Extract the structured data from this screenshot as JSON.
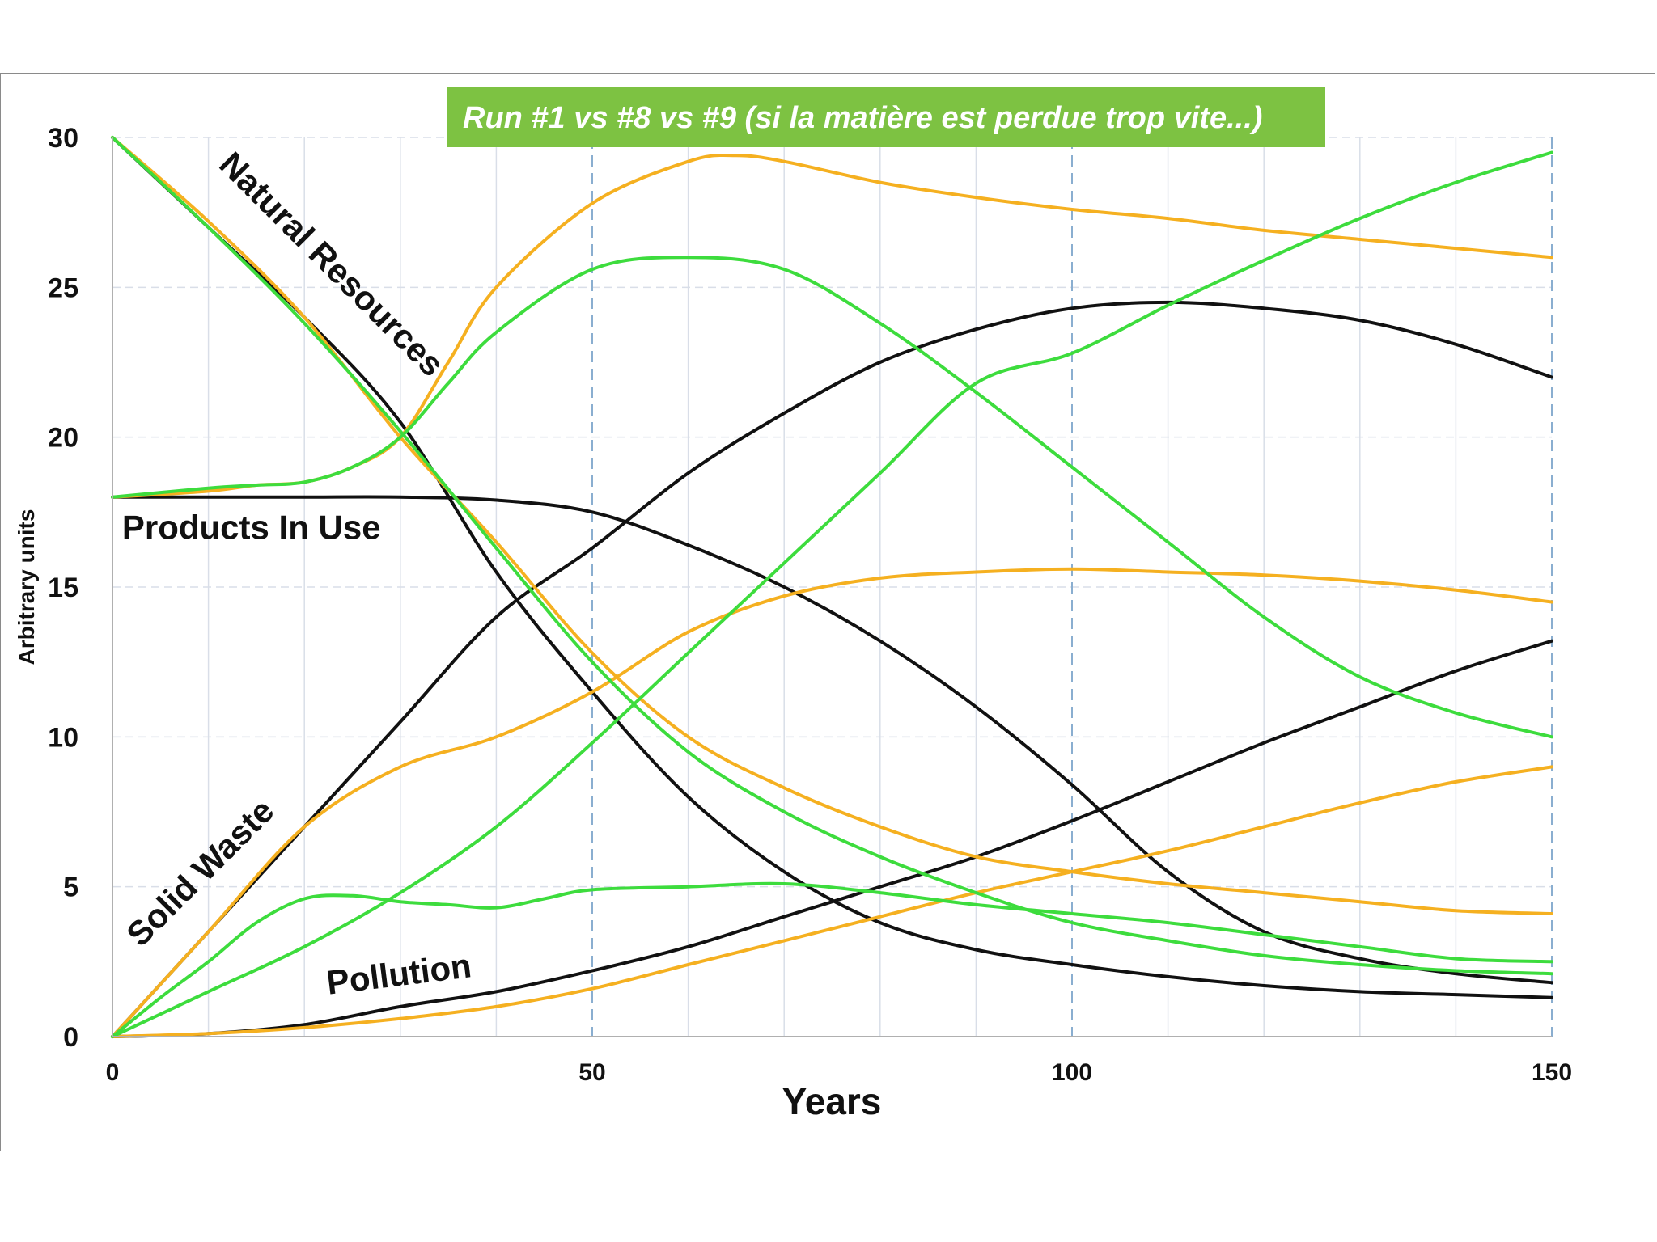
{
  "chart_data": {
    "type": "line",
    "title": "Run #1 vs #8 vs #9 (si la matière est perdue trop vite...)",
    "xlabel": "Years",
    "ylabel": "Arbitrary units",
    "xlim": [
      0,
      150
    ],
    "ylim": [
      0,
      30
    ],
    "xticks": [
      0,
      50,
      100,
      150
    ],
    "yticks": [
      0,
      5,
      10,
      15,
      20,
      25,
      30
    ],
    "grid": true,
    "colors": {
      "run1": "#111111",
      "run8": "#f5b020",
      "run9": "#3ddc3d",
      "title_bg": "#7dc242",
      "grid": "#d9dee8",
      "dashed": "#8aaed0"
    },
    "annotations": [
      {
        "text": "Natural Resources",
        "x": 22,
        "y": 25.5
      },
      {
        "text": "Products In Use",
        "x": 1,
        "y": 16.6
      },
      {
        "text": "Solid Waste",
        "x": 10,
        "y": 5.2
      },
      {
        "text": "Pollution",
        "x": 30,
        "y": 1.7
      }
    ],
    "series": [
      {
        "name": "Natural Resources - Run #1",
        "run": "run1",
        "points": [
          [
            0,
            30
          ],
          [
            10,
            27
          ],
          [
            20,
            24
          ],
          [
            30,
            20.5
          ],
          [
            40,
            15.5
          ],
          [
            50,
            11.5
          ],
          [
            60,
            8
          ],
          [
            70,
            5.5
          ],
          [
            80,
            3.8
          ],
          [
            90,
            2.9
          ],
          [
            100,
            2.4
          ],
          [
            110,
            2.0
          ],
          [
            120,
            1.7
          ],
          [
            130,
            1.5
          ],
          [
            140,
            1.4
          ],
          [
            150,
            1.3
          ]
        ]
      },
      {
        "name": "Natural Resources - Run #8",
        "run": "run8",
        "points": [
          [
            0,
            30
          ],
          [
            10,
            27.2
          ],
          [
            20,
            24
          ],
          [
            30,
            20
          ],
          [
            40,
            16.5
          ],
          [
            50,
            12.8
          ],
          [
            60,
            10
          ],
          [
            70,
            8.3
          ],
          [
            80,
            7
          ],
          [
            90,
            6
          ],
          [
            100,
            5.5
          ],
          [
            110,
            5.1
          ],
          [
            120,
            4.8
          ],
          [
            130,
            4.5
          ],
          [
            140,
            4.2
          ],
          [
            150,
            4.1
          ]
        ]
      },
      {
        "name": "Natural Resources - Run #9",
        "run": "run9",
        "points": [
          [
            0,
            30
          ],
          [
            10,
            27
          ],
          [
            20,
            23.8
          ],
          [
            30,
            20.2
          ],
          [
            40,
            16.3
          ],
          [
            50,
            12.5
          ],
          [
            60,
            9.5
          ],
          [
            70,
            7.5
          ],
          [
            80,
            6
          ],
          [
            90,
            4.8
          ],
          [
            100,
            3.8
          ],
          [
            110,
            3.2
          ],
          [
            120,
            2.7
          ],
          [
            130,
            2.4
          ],
          [
            140,
            2.2
          ],
          [
            150,
            2.1
          ]
        ]
      },
      {
        "name": "Products In Use - Run #1",
        "run": "run1",
        "points": [
          [
            0,
            18
          ],
          [
            10,
            18
          ],
          [
            20,
            18
          ],
          [
            30,
            18
          ],
          [
            40,
            17.9
          ],
          [
            50,
            17.5
          ],
          [
            60,
            16.4
          ],
          [
            70,
            15
          ],
          [
            80,
            13.2
          ],
          [
            90,
            11
          ],
          [
            100,
            8.4
          ],
          [
            110,
            5.5
          ],
          [
            120,
            3.5
          ],
          [
            130,
            2.6
          ],
          [
            140,
            2.1
          ],
          [
            150,
            1.8
          ]
        ]
      },
      {
        "name": "Products In Use - Run #8",
        "run": "run8",
        "points": [
          [
            0,
            18
          ],
          [
            10,
            18.2
          ],
          [
            15,
            18.4
          ],
          [
            20,
            18.5
          ],
          [
            25,
            19
          ],
          [
            30,
            20
          ],
          [
            35,
            22.5
          ],
          [
            40,
            25
          ],
          [
            50,
            27.8
          ],
          [
            60,
            29.2
          ],
          [
            65,
            29.4
          ],
          [
            70,
            29.2
          ],
          [
            80,
            28.5
          ],
          [
            90,
            28
          ],
          [
            100,
            27.6
          ],
          [
            110,
            27.3
          ],
          [
            120,
            26.9
          ],
          [
            130,
            26.6
          ],
          [
            140,
            26.3
          ],
          [
            150,
            26
          ]
        ]
      },
      {
        "name": "Products In Use - Run #9",
        "run": "run9",
        "points": [
          [
            0,
            18
          ],
          [
            10,
            18.3
          ],
          [
            15,
            18.4
          ],
          [
            20,
            18.5
          ],
          [
            25,
            19
          ],
          [
            30,
            20
          ],
          [
            35,
            21.8
          ],
          [
            40,
            23.5
          ],
          [
            50,
            25.6
          ],
          [
            60,
            26
          ],
          [
            70,
            25.6
          ],
          [
            80,
            23.8
          ],
          [
            90,
            21.5
          ],
          [
            100,
            19
          ],
          [
            110,
            16.5
          ],
          [
            120,
            14
          ],
          [
            130,
            12
          ],
          [
            140,
            10.8
          ],
          [
            150,
            10
          ]
        ]
      },
      {
        "name": "Solid Waste - Run #1",
        "run": "run1",
        "points": [
          [
            0,
            0
          ],
          [
            10,
            3.5
          ],
          [
            20,
            7
          ],
          [
            30,
            10.5
          ],
          [
            40,
            14
          ],
          [
            50,
            16.3
          ],
          [
            60,
            18.8
          ],
          [
            70,
            20.8
          ],
          [
            80,
            22.5
          ],
          [
            90,
            23.6
          ],
          [
            100,
            24.3
          ],
          [
            110,
            24.5
          ],
          [
            120,
            24.3
          ],
          [
            130,
            23.9
          ],
          [
            140,
            23.1
          ],
          [
            150,
            22
          ]
        ]
      },
      {
        "name": "Solid Waste - Run #8",
        "run": "run8",
        "points": [
          [
            0,
            0
          ],
          [
            10,
            3.5
          ],
          [
            20,
            7
          ],
          [
            30,
            9
          ],
          [
            40,
            10
          ],
          [
            50,
            11.5
          ],
          [
            60,
            13.5
          ],
          [
            70,
            14.7
          ],
          [
            80,
            15.3
          ],
          [
            90,
            15.5
          ],
          [
            100,
            15.6
          ],
          [
            110,
            15.5
          ],
          [
            120,
            15.4
          ],
          [
            130,
            15.2
          ],
          [
            140,
            14.9
          ],
          [
            150,
            14.5
          ]
        ]
      },
      {
        "name": "Solid Waste - Run #9",
        "run": "run9",
        "points": [
          [
            0,
            0
          ],
          [
            10,
            1.5
          ],
          [
            20,
            3
          ],
          [
            30,
            4.8
          ],
          [
            40,
            7
          ],
          [
            50,
            9.8
          ],
          [
            60,
            12.8
          ],
          [
            70,
            15.8
          ],
          [
            80,
            18.8
          ],
          [
            90,
            21.8
          ],
          [
            100,
            22.8
          ],
          [
            110,
            24.4
          ],
          [
            120,
            25.9
          ],
          [
            130,
            27.3
          ],
          [
            140,
            28.5
          ],
          [
            150,
            29.5
          ]
        ]
      },
      {
        "name": "Pollution - Run #1",
        "run": "run1",
        "points": [
          [
            0,
            0
          ],
          [
            10,
            0.1
          ],
          [
            20,
            0.4
          ],
          [
            30,
            1
          ],
          [
            40,
            1.5
          ],
          [
            50,
            2.2
          ],
          [
            60,
            3
          ],
          [
            70,
            4
          ],
          [
            80,
            5
          ],
          [
            90,
            6
          ],
          [
            100,
            7.2
          ],
          [
            110,
            8.5
          ],
          [
            120,
            9.8
          ],
          [
            130,
            11
          ],
          [
            140,
            12.2
          ],
          [
            150,
            13.2
          ]
        ]
      },
      {
        "name": "Pollution - Run #8",
        "run": "run8",
        "points": [
          [
            0,
            0
          ],
          [
            10,
            0.1
          ],
          [
            20,
            0.3
          ],
          [
            30,
            0.6
          ],
          [
            40,
            1
          ],
          [
            50,
            1.6
          ],
          [
            60,
            2.4
          ],
          [
            70,
            3.2
          ],
          [
            80,
            4
          ],
          [
            90,
            4.8
          ],
          [
            100,
            5.5
          ],
          [
            110,
            6.2
          ],
          [
            120,
            7
          ],
          [
            130,
            7.8
          ],
          [
            140,
            8.5
          ],
          [
            150,
            9
          ]
        ]
      },
      {
        "name": "Pollution - Run #9",
        "run": "run9",
        "points": [
          [
            0,
            0
          ],
          [
            5,
            1.3
          ],
          [
            10,
            2.5
          ],
          [
            15,
            3.8
          ],
          [
            20,
            4.6
          ],
          [
            25,
            4.7
          ],
          [
            30,
            4.5
          ],
          [
            35,
            4.4
          ],
          [
            40,
            4.3
          ],
          [
            45,
            4.6
          ],
          [
            50,
            4.9
          ],
          [
            60,
            5
          ],
          [
            70,
            5.1
          ],
          [
            80,
            4.8
          ],
          [
            90,
            4.4
          ],
          [
            100,
            4.1
          ],
          [
            110,
            3.8
          ],
          [
            120,
            3.4
          ],
          [
            130,
            3
          ],
          [
            140,
            2.6
          ],
          [
            150,
            2.5
          ]
        ]
      }
    ]
  }
}
